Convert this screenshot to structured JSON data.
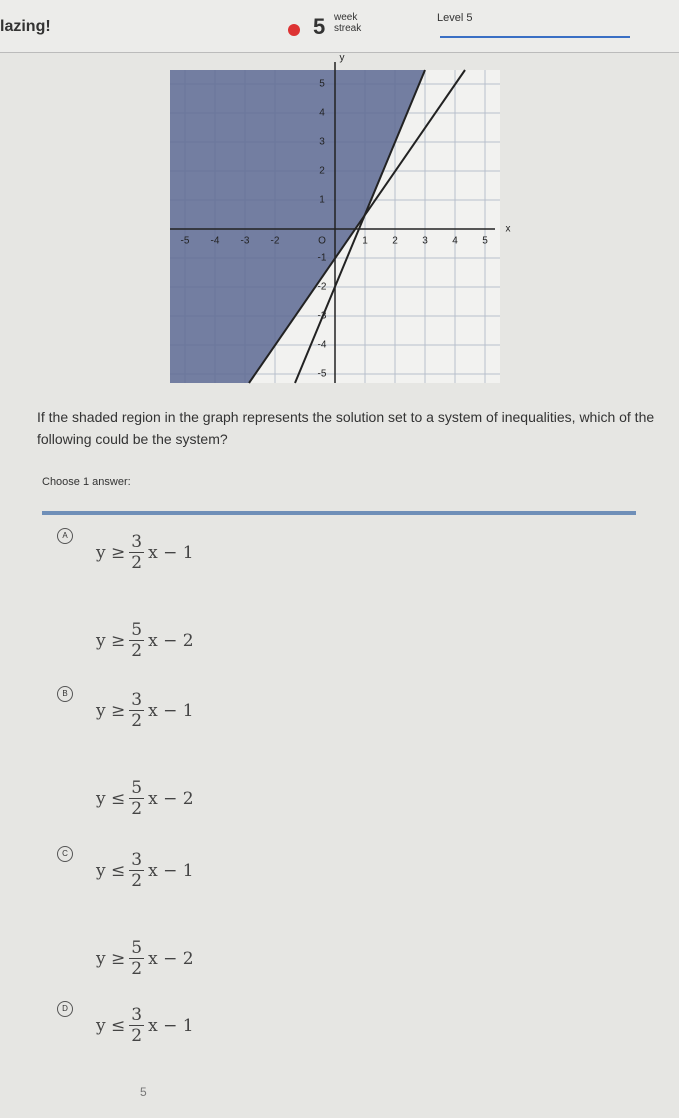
{
  "header": {
    "left_text": "lazing!",
    "streak_number": "5",
    "streak_top": "week",
    "streak_bottom": "streak",
    "level": "Level 5"
  },
  "graph": {
    "x_axis_label": "x",
    "y_axis_label": "y",
    "origin_label": "O",
    "xticks": [
      -5,
      -4,
      -3,
      -2,
      1,
      2,
      3,
      4,
      5
    ],
    "yticks": [
      5,
      4,
      3,
      2,
      1,
      -1,
      -2,
      -3,
      -4,
      -5
    ]
  },
  "question": "If the shaded region in the graph represents the solution set to a system of inequalities, which of the following could be the system?",
  "prompt": "Choose 1 answer:",
  "options": [
    {
      "letter": "A",
      "inequalities": [
        {
          "rel": "y ≥",
          "num": "3",
          "den": "2",
          "rest": "x − 1"
        },
        {
          "rel": "y ≥",
          "num": "5",
          "den": "2",
          "rest": "x − 2"
        }
      ]
    },
    {
      "letter": "B",
      "inequalities": [
        {
          "rel": "y ≥",
          "num": "3",
          "den": "2",
          "rest": "x − 1"
        },
        {
          "rel": "y ≤",
          "num": "5",
          "den": "2",
          "rest": "x − 2"
        }
      ]
    },
    {
      "letter": "C",
      "inequalities": [
        {
          "rel": "y ≤",
          "num": "3",
          "den": "2",
          "rest": "x − 1"
        },
        {
          "rel": "y ≥",
          "num": "5",
          "den": "2",
          "rest": "x − 2"
        }
      ]
    },
    {
      "letter": "D",
      "inequalities": [
        {
          "rel": "y ≤",
          "num": "3",
          "den": "2",
          "rest": "x − 1"
        }
      ]
    }
  ],
  "footer": "5"
}
